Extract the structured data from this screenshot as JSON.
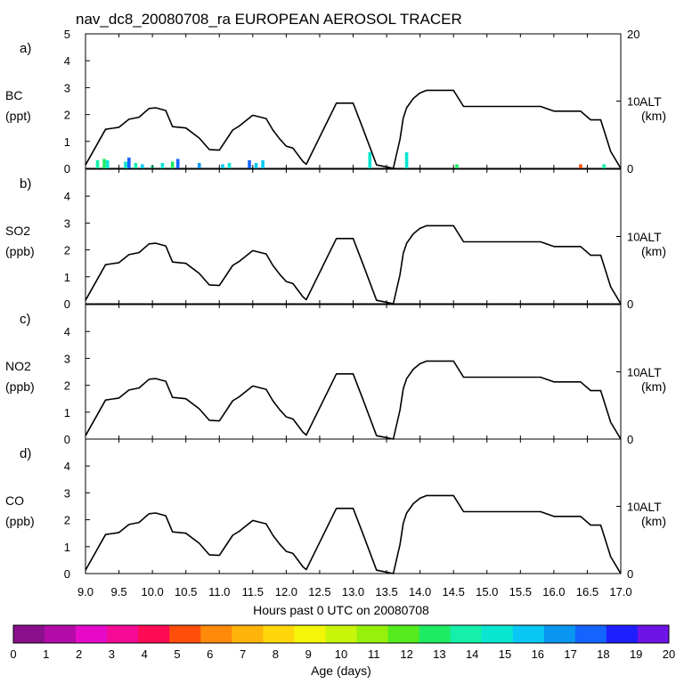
{
  "chart_data": {
    "type": "line",
    "title": "nav_dc8_20080708_ra EUROPEAN AEROSOL TRACER",
    "xlabel": "Hours past 0 UTC on 20080708",
    "xlim": [
      9.0,
      17.0
    ],
    "x_ticks": [
      "9.0",
      "9.5",
      "10.0",
      "10.5",
      "11.0",
      "11.5",
      "12.0",
      "12.5",
      "13.0",
      "13.5",
      "14.0",
      "14.5",
      "15.0",
      "15.5",
      "16.0",
      "16.5",
      "17.0"
    ],
    "right_axis": {
      "label": "ALT",
      "unit": "(km)",
      "ylim": [
        0,
        20
      ],
      "ticks": [
        "0",
        "10",
        "20"
      ]
    },
    "altitude_km": {
      "x": [
        9.0,
        9.3,
        9.5,
        9.65,
        9.8,
        9.95,
        10.05,
        10.2,
        10.3,
        10.5,
        10.7,
        10.85,
        11.0,
        11.2,
        11.3,
        11.5,
        11.7,
        11.8,
        11.9,
        12.0,
        12.1,
        12.25,
        12.3,
        12.75,
        13.0,
        13.15,
        13.35,
        13.45,
        13.6,
        13.7,
        13.75,
        13.8,
        13.9,
        14.0,
        14.1,
        14.5,
        14.65,
        15.2,
        15.5,
        15.8,
        16.0,
        16.2,
        16.4,
        16.55,
        16.7,
        16.85,
        17.0
      ],
      "y": [
        0.5,
        5.8,
        6.1,
        7.3,
        7.6,
        8.9,
        9.0,
        8.6,
        6.2,
        6.0,
        4.5,
        2.8,
        2.7,
        5.7,
        6.3,
        7.9,
        7.4,
        5.7,
        4.4,
        3.3,
        3.0,
        1.0,
        0.6,
        9.7,
        9.7,
        5.8,
        0.5,
        0.3,
        0.0,
        4.3,
        7.5,
        9.0,
        10.4,
        11.2,
        11.6,
        11.6,
        9.2,
        9.2,
        9.2,
        9.2,
        8.5,
        8.5,
        8.5,
        7.2,
        7.2,
        2.5,
        0.0
      ]
    },
    "panels": [
      {
        "letter": "a)",
        "species": "BC",
        "unit": "(ppt)",
        "ylim": [
          0,
          5
        ],
        "y_ticks": [
          "0",
          "1",
          "2",
          "3",
          "4",
          "5"
        ],
        "right_ticks": [
          "0",
          "10",
          "20"
        ]
      },
      {
        "letter": "b)",
        "species": "SO2",
        "unit": "(ppb)",
        "ylim": [
          0,
          5
        ],
        "y_ticks": [
          "0",
          "1",
          "2",
          "3",
          "4"
        ],
        "right_ticks": [
          "0",
          "10"
        ]
      },
      {
        "letter": "c)",
        "species": "NO2",
        "unit": "(ppb)",
        "ylim": [
          0,
          5
        ],
        "y_ticks": [
          "0",
          "1",
          "2",
          "3",
          "4"
        ],
        "right_ticks": [
          "0",
          "10"
        ]
      },
      {
        "letter": "d)",
        "species": "CO",
        "unit": "(ppb)",
        "ylim": [
          0,
          5
        ],
        "y_ticks": [
          "0",
          "1",
          "2",
          "3",
          "4"
        ],
        "right_ticks": [
          "0",
          "10"
        ]
      }
    ],
    "bc_tracer": [
      {
        "x": 9.18,
        "value": 0.3,
        "age_days": 14
      },
      {
        "x": 9.28,
        "value": 0.35,
        "age_days": 13
      },
      {
        "x": 9.33,
        "value": 0.3,
        "age_days": 15
      },
      {
        "x": 9.6,
        "value": 0.25,
        "age_days": 15
      },
      {
        "x": 9.65,
        "value": 0.4,
        "age_days": 18
      },
      {
        "x": 9.75,
        "value": 0.2,
        "age_days": 14
      },
      {
        "x": 9.85,
        "value": 0.15,
        "age_days": 16
      },
      {
        "x": 10.0,
        "value": 0.1,
        "age_days": 14
      },
      {
        "x": 10.15,
        "value": 0.2,
        "age_days": 15
      },
      {
        "x": 10.3,
        "value": 0.25,
        "age_days": 13
      },
      {
        "x": 10.38,
        "value": 0.35,
        "age_days": 18
      },
      {
        "x": 10.7,
        "value": 0.2,
        "age_days": 17
      },
      {
        "x": 11.05,
        "value": 0.15,
        "age_days": 16
      },
      {
        "x": 11.15,
        "value": 0.2,
        "age_days": 15
      },
      {
        "x": 11.45,
        "value": 0.3,
        "age_days": 18
      },
      {
        "x": 11.55,
        "value": 0.2,
        "age_days": 16
      },
      {
        "x": 11.65,
        "value": 0.3,
        "age_days": 16
      },
      {
        "x": 13.25,
        "value": 0.6,
        "age_days": 15
      },
      {
        "x": 13.8,
        "value": 0.6,
        "age_days": 15
      },
      {
        "x": 14.55,
        "value": 0.15,
        "age_days": 13
      },
      {
        "x": 16.4,
        "value": 0.15,
        "age_days": 5
      },
      {
        "x": 16.75,
        "value": 0.15,
        "age_days": 14
      }
    ],
    "colorbar": {
      "label": "Age (days)",
      "ticks": [
        "0",
        "1",
        "2",
        "3",
        "4",
        "5",
        "6",
        "7",
        "8",
        "9",
        "10",
        "11",
        "12",
        "13",
        "14",
        "15",
        "16",
        "17",
        "18",
        "19",
        "20"
      ],
      "colors": [
        "#8a0f8c",
        "#b40aa8",
        "#e60ac8",
        "#f50a96",
        "#ff0a55",
        "#ff4d0a",
        "#ff8a0a",
        "#ffb40a",
        "#ffd70a",
        "#f5f50a",
        "#c8f50a",
        "#96f00a",
        "#55eb1e",
        "#1eeb64",
        "#14f0aa",
        "#0ae6d2",
        "#0ac8f5",
        "#0a96f0",
        "#1464ff",
        "#1e1eff",
        "#6e14e6"
      ]
    }
  }
}
